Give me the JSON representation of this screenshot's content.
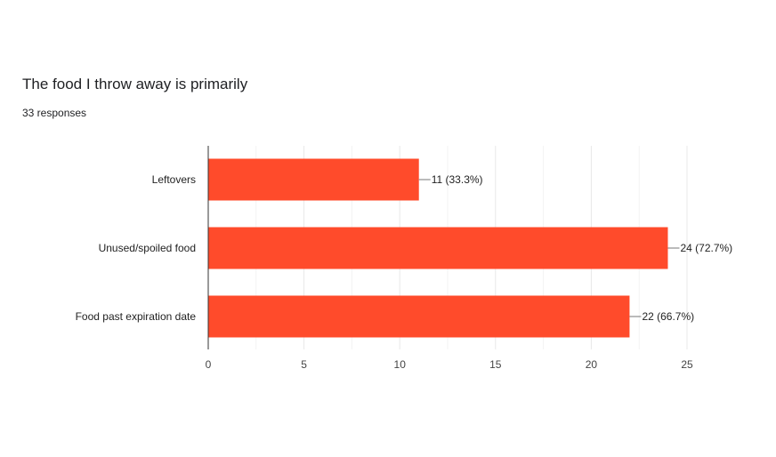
{
  "question": {
    "title": "The food I throw away is primarily",
    "responses": "33 responses"
  },
  "colors": {
    "bar": "#ff4b2b",
    "gridline": "#e8e8e8",
    "axis": "#333333"
  },
  "chart_data": {
    "type": "bar",
    "orientation": "horizontal",
    "categories": [
      "Leftovers",
      "Unused/spoiled food",
      "Food past expiration date"
    ],
    "values": [
      11,
      24,
      22
    ],
    "data_labels": [
      "11 (33.3%)",
      "24 (72.7%)",
      "22 (66.7%)"
    ],
    "xlim": [
      0,
      25
    ],
    "xticks": [
      0,
      5,
      10,
      15,
      20,
      25
    ],
    "grid": true
  }
}
